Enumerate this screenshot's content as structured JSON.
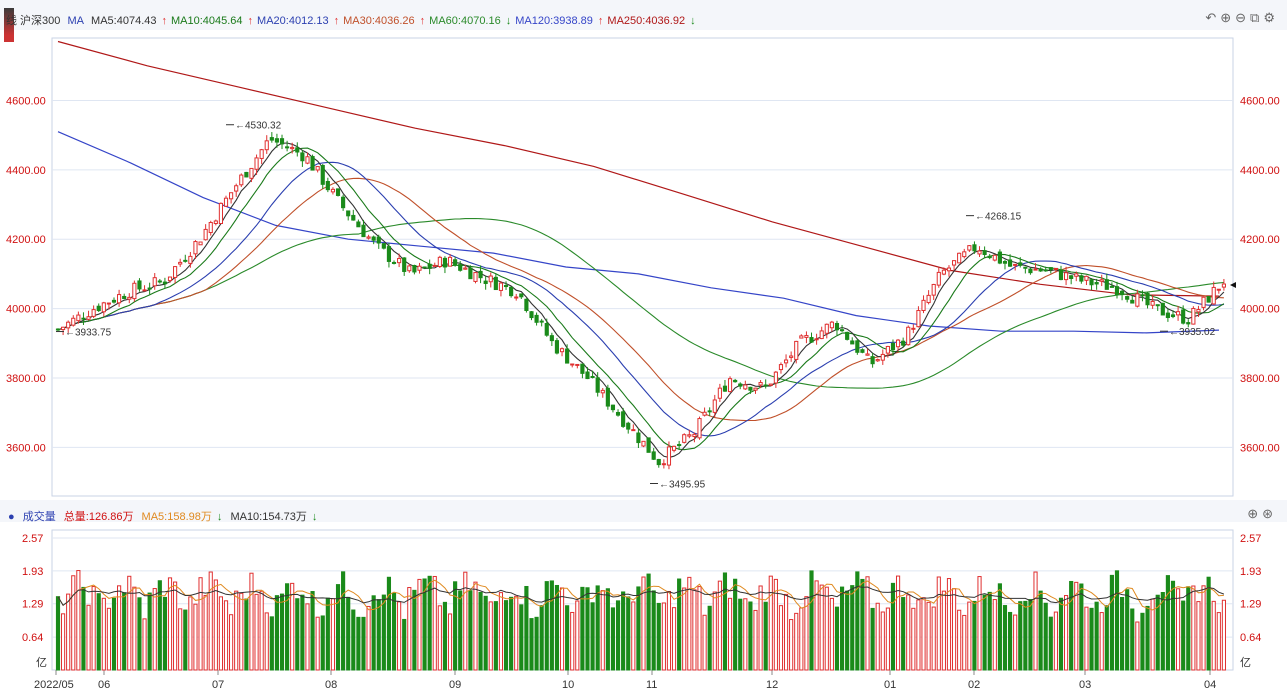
{
  "header": {
    "stock_name": "线 沪深300",
    "ma_prefix": "MA",
    "ma": [
      {
        "label": "MA5:4074.43",
        "dir": "up",
        "color": "#333333"
      },
      {
        "label": "MA10:4045.64",
        "dir": "up",
        "color": "#1a7a1a"
      },
      {
        "label": "MA20:4012.13",
        "dir": "up",
        "color": "#2b3fb0"
      },
      {
        "label": "MA30:4036.26",
        "dir": "up",
        "color": "#c0502a"
      },
      {
        "label": "MA60:4070.16",
        "dir": "down",
        "color": "#2a8a2a"
      },
      {
        "label": "MA120:3938.89",
        "dir": "up",
        "color": "#3545c8"
      },
      {
        "label": "MA250:4036.92",
        "dir": "down",
        "color": "#b01818"
      }
    ],
    "tool_icons": [
      "undo-icon",
      "zoom-in-icon",
      "zoom-out-icon",
      "fullscreen-icon",
      "settings-icon"
    ]
  },
  "volume_header": {
    "title": "成交量",
    "total_label": "总量:126.86万",
    "ma5_label": "MA5:158.98万",
    "ma10_label": "MA10:154.73万"
  },
  "colors": {
    "up": "#e03030",
    "down": "#1a8a1a",
    "grid": "#dfe6f2",
    "axis_label": "#d01010"
  },
  "chart_data": {
    "type": "candlestick",
    "price_axis": {
      "ticks": [
        3600,
        3800,
        4000,
        4200,
        4400,
        4600
      ],
      "tick_labels": [
        "3600.00",
        "3800.00",
        "4000.00",
        "4200.00",
        "4400.00",
        "4600.00"
      ],
      "ylim": [
        3460,
        4780
      ]
    },
    "volume_axis": {
      "ticks": [
        0.64,
        1.29,
        1.93,
        2.57
      ],
      "tick_labels": [
        "0.64",
        "1.29",
        "1.93",
        "2.57"
      ],
      "unit": "亿",
      "ylim": [
        0,
        2.57
      ]
    },
    "x_labels": [
      "2022/05",
      "06",
      "07",
      "08",
      "09",
      "10",
      "11",
      "12",
      "01",
      "02",
      "03",
      "04"
    ],
    "annotations": [
      "4530.32",
      "3933.75",
      "3495.95",
      "4268.15",
      "3935.02"
    ],
    "close_series": [
      {
        "x": "2022/05",
        "y": 3940
      },
      {
        "x": "05-10",
        "y": 4000
      },
      {
        "x": "05-20",
        "y": 4050
      },
      {
        "x": "06",
        "y": 4080
      },
      {
        "x": "06-10",
        "y": 4200
      },
      {
        "x": "06-20",
        "y": 4350
      },
      {
        "x": "07",
        "y": 4490
      },
      {
        "x": "07-10",
        "y": 4440
      },
      {
        "x": "07-20",
        "y": 4300
      },
      {
        "x": "08",
        "y": 4180
      },
      {
        "x": "08-10",
        "y": 4100
      },
      {
        "x": "08-20",
        "y": 4140
      },
      {
        "x": "09",
        "y": 4090
      },
      {
        "x": "09-10",
        "y": 4050
      },
      {
        "x": "09-20",
        "y": 3900
      },
      {
        "x": "10",
        "y": 3800
      },
      {
        "x": "10-10",
        "y": 3680
      },
      {
        "x": "10-20",
        "y": 3560
      },
      {
        "x": "11",
        "y": 3640
      },
      {
        "x": "11-10",
        "y": 3800
      },
      {
        "x": "11-20",
        "y": 3770
      },
      {
        "x": "12",
        "y": 3900
      },
      {
        "x": "12-10",
        "y": 3960
      },
      {
        "x": "12-20",
        "y": 3840
      },
      {
        "x": "01",
        "y": 3920
      },
      {
        "x": "01-10",
        "y": 4100
      },
      {
        "x": "01-20",
        "y": 4180
      },
      {
        "x": "02",
        "y": 4120
      },
      {
        "x": "02-10",
        "y": 4110
      },
      {
        "x": "02-20",
        "y": 4080
      },
      {
        "x": "03",
        "y": 4060
      },
      {
        "x": "03-10",
        "y": 4000
      },
      {
        "x": "03-20",
        "y": 3970
      },
      {
        "x": "04",
        "y": 4080
      }
    ],
    "ma_lines": [
      {
        "name": "MA5",
        "color": "#333333"
      },
      {
        "name": "MA10",
        "color": "#1a7a1a"
      },
      {
        "name": "MA20",
        "color": "#2b3fb0"
      },
      {
        "name": "MA30",
        "color": "#c0502a"
      },
      {
        "name": "MA60",
        "color": "#2a8a2a"
      },
      {
        "name": "MA120",
        "color": "#3545c8"
      },
      {
        "name": "MA250",
        "color": "#b01818"
      }
    ],
    "ma120_points": [
      4510,
      4420,
      4320,
      4240,
      4200,
      4180,
      4160,
      4120,
      4100,
      4060,
      4030,
      3980,
      3950,
      3935,
      3935,
      3930,
      3938
    ],
    "ma250_points": [
      4770,
      4700,
      4640,
      4580,
      4520,
      4470,
      4410,
      4330,
      4250,
      4180,
      4110,
      4070,
      4040,
      4036
    ]
  }
}
